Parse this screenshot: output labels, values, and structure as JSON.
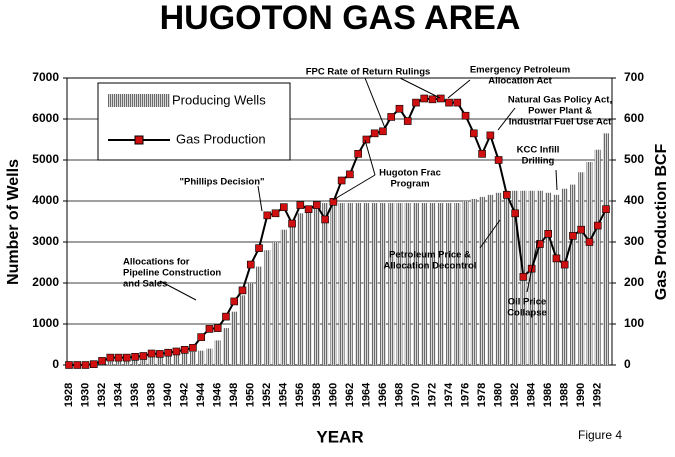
{
  "chart_data": {
    "type": "bar-line",
    "title": "HUGOTON GAS AREA",
    "xlabel": "YEAR",
    "ylabel": "Number of Wells",
    "y2label": "Gas Production BCF",
    "figure_label": "Figure  4",
    "categories": [
      "1928",
      null,
      "1930",
      null,
      "1932",
      null,
      "1934",
      null,
      "1936",
      null,
      "1938",
      null,
      "1940",
      null,
      "1942",
      null,
      "1944",
      null,
      "1946",
      null,
      "1948",
      null,
      "1950",
      null,
      "1952",
      null,
      "1954",
      null,
      "1956",
      null,
      "1958",
      null,
      "1960",
      null,
      "1962",
      null,
      "1964",
      null,
      "1966",
      null,
      "1968",
      null,
      "1970",
      null,
      "1972",
      null,
      "1974",
      null,
      "1976",
      null,
      "1978",
      null,
      "1980",
      null,
      "1982",
      null,
      "1984",
      null,
      "1986",
      null,
      "1988",
      null,
      "1990",
      null,
      "1992",
      null
    ],
    "series": [
      {
        "name": "Producing Wells",
        "type": "bar",
        "color": "#8c8c8c",
        "values": [
          20,
          30,
          40,
          50,
          60,
          80,
          100,
          120,
          150,
          180,
          200,
          220,
          250,
          280,
          300,
          320,
          350,
          400,
          600,
          900,
          1300,
          1700,
          2000,
          2400,
          2800,
          3000,
          3300,
          3500,
          3700,
          3850,
          3900,
          3950,
          3950,
          3950,
          3950,
          3950,
          3950,
          3950,
          3950,
          3950,
          3950,
          3950,
          3950,
          3950,
          3950,
          3950,
          3950,
          3950,
          4000,
          4050,
          4100,
          4150,
          4200,
          4250,
          4250,
          4250,
          4250,
          4250,
          4200,
          4150,
          4300,
          4400,
          4700,
          4950,
          5250,
          5650
        ]
      },
      {
        "name": "Gas Production",
        "type": "line",
        "color": "#d01010",
        "axis": "y2",
        "values": [
          0,
          0,
          0,
          2,
          10,
          18,
          18,
          18,
          20,
          22,
          28,
          27,
          30,
          33,
          37,
          42,
          68,
          88,
          90,
          118,
          155,
          182,
          245,
          285,
          365,
          370,
          385,
          345,
          390,
          380,
          390,
          355,
          398,
          450,
          465,
          515,
          550,
          565,
          570,
          605,
          625,
          595,
          640,
          650,
          648,
          650,
          640,
          640,
          608,
          565,
          515,
          560,
          500,
          415,
          370,
          215,
          235,
          295,
          320,
          260,
          245,
          315,
          330,
          300,
          340,
          380
        ]
      }
    ],
    "ylim": [
      0,
      7000
    ],
    "yticks": [
      0,
      1000,
      2000,
      3000,
      4000,
      5000,
      6000,
      7000
    ],
    "y2lim": [
      0,
      700
    ],
    "y2ticks": [
      0,
      100,
      200,
      300,
      400,
      500,
      600,
      700
    ],
    "grid": true,
    "annotations": [
      {
        "lines": [
          "Allocations for",
          "Pipeline Construction",
          "and Sales"
        ]
      },
      {
        "lines": [
          "\"Phillips Decision\""
        ]
      },
      {
        "lines": [
          "FPC Rate of Return Rulings"
        ]
      },
      {
        "lines": [
          "Emergency Petroleum",
          "Allocation Act"
        ]
      },
      {
        "lines": [
          "Hugoton Frac",
          "Program"
        ]
      },
      {
        "lines": [
          "Natural Gas Policy Act,",
          "Power Plant &",
          "Industrial Fuel Use Act"
        ]
      },
      {
        "lines": [
          "KCC Infill",
          "Drilling"
        ]
      },
      {
        "lines": [
          "Petroleum Price &",
          "Allocation Decontrol"
        ]
      },
      {
        "lines": [
          "Oil Price",
          "Collapse"
        ]
      }
    ]
  }
}
